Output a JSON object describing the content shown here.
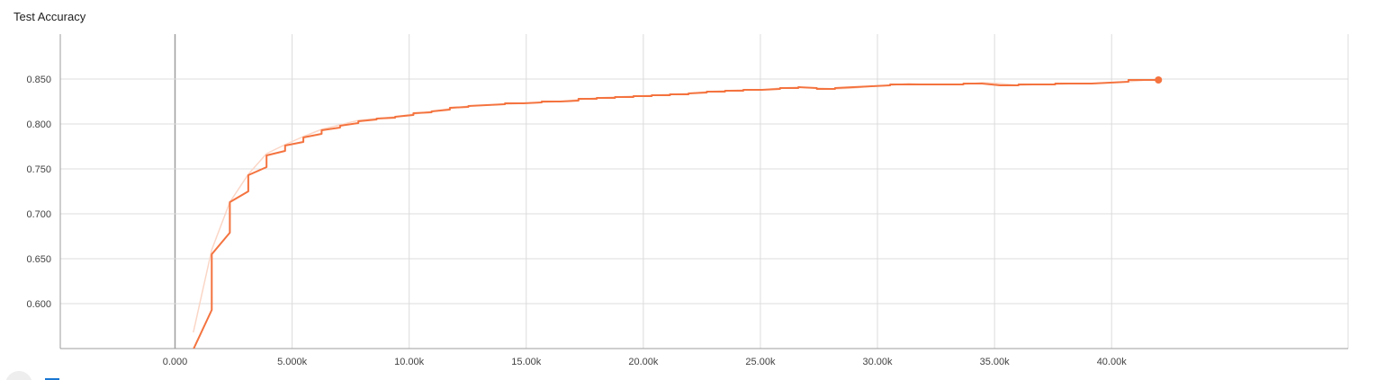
{
  "chart_title": "Test Accuracy",
  "chart_data": {
    "type": "line",
    "title": "Test Accuracy",
    "xlabel": "",
    "ylabel": "",
    "xlim": [
      -4900,
      50100
    ],
    "ylim": [
      0.55,
      0.9
    ],
    "grid": true,
    "x_ticks": [
      0,
      5000,
      10000,
      15000,
      20000,
      25000,
      30000,
      35000,
      40000
    ],
    "x_tick_labels": [
      "0.000",
      "5.000k",
      "10.00k",
      "15.00k",
      "20.00k",
      "25.00k",
      "30.00k",
      "35.00k",
      "40.00k"
    ],
    "y_ticks": [
      0.6,
      0.65,
      0.7,
      0.75,
      0.8,
      0.85
    ],
    "y_tick_labels": [
      "0.600",
      "0.650",
      "0.700",
      "0.750",
      "0.800",
      "0.850"
    ],
    "series": [
      {
        "role": "smoothed",
        "color": "#f4733f",
        "x": [
          780,
          1570,
          1570,
          2340,
          2340,
          3130,
          3130,
          3910,
          3910,
          4700,
          4700,
          5480,
          5480,
          6260,
          6260,
          7050,
          7050,
          7830,
          7830,
          8610,
          8610,
          9400,
          9400,
          10180,
          10180,
          10960,
          10960,
          11740,
          11740,
          12530,
          12530,
          13310,
          13310,
          14090,
          14090,
          14880,
          14880,
          15660,
          15660,
          16440,
          16440,
          17230,
          17230,
          18010,
          18010,
          18790,
          18790,
          19580,
          19580,
          20360,
          20360,
          21140,
          21140,
          21930,
          21930,
          22710,
          22710,
          23490,
          23490,
          24270,
          24270,
          25060,
          25060,
          25840,
          25840,
          26620,
          26620,
          27410,
          27410,
          28190,
          28190,
          28970,
          28970,
          29760,
          29760,
          30540,
          30540,
          31320,
          31320,
          32110,
          32110,
          32890,
          32890,
          33670,
          33670,
          34460,
          34460,
          35240,
          35240,
          36020,
          36020,
          36800,
          36800,
          37590,
          37590,
          38370,
          38370,
          39150,
          39150,
          39940,
          39940,
          40720,
          40720,
          41500,
          41500,
          42000
        ],
        "y": [
          0.549,
          0.593,
          0.655,
          0.679,
          0.713,
          0.725,
          0.743,
          0.752,
          0.765,
          0.77,
          0.776,
          0.78,
          0.785,
          0.789,
          0.793,
          0.796,
          0.798,
          0.801,
          0.803,
          0.805,
          0.806,
          0.807,
          0.808,
          0.81,
          0.812,
          0.813,
          0.814,
          0.816,
          0.818,
          0.819,
          0.82,
          0.821,
          0.821,
          0.822,
          0.823,
          0.823,
          0.823,
          0.824,
          0.825,
          0.825,
          0.825,
          0.826,
          0.828,
          0.828,
          0.829,
          0.829,
          0.83,
          0.83,
          0.831,
          0.831,
          0.832,
          0.832,
          0.833,
          0.833,
          0.834,
          0.835,
          0.836,
          0.836,
          0.837,
          0.837,
          0.838,
          0.838,
          0.838,
          0.839,
          0.84,
          0.84,
          0.841,
          0.84,
          0.839,
          0.839,
          0.84,
          0.841,
          0.841,
          0.842,
          0.842,
          0.843,
          0.844,
          0.844,
          0.844,
          0.844,
          0.844,
          0.844,
          0.844,
          0.844,
          0.845,
          0.845,
          0.845,
          0.843,
          0.843,
          0.843,
          0.844,
          0.844,
          0.844,
          0.844,
          0.845,
          0.845,
          0.845,
          0.845,
          0.845,
          0.846,
          0.846,
          0.847,
          0.849,
          0.849,
          0.849,
          0.849
        ]
      },
      {
        "role": "raw",
        "color": "#fbd6c6",
        "x": [
          780,
          1570,
          2340,
          3130,
          3910,
          4700,
          5480,
          6260,
          7050,
          7830,
          8610,
          9400,
          10180,
          10960,
          11740,
          12530,
          13310,
          14090,
          14880,
          15660,
          16440,
          17230,
          18010,
          18790,
          19580,
          20360,
          21140,
          21930,
          22710,
          23490,
          24270,
          25060,
          25840,
          26620,
          27410,
          28190,
          28970,
          29760,
          30540,
          31320,
          32110,
          32890,
          33670,
          34460,
          35240,
          36020,
          36800,
          37590,
          38370,
          39150,
          39940,
          40720,
          41500,
          42000
        ],
        "y": [
          0.568,
          0.66,
          0.713,
          0.744,
          0.767,
          0.777,
          0.786,
          0.794,
          0.799,
          0.804,
          0.806,
          0.808,
          0.811,
          0.814,
          0.817,
          0.82,
          0.821,
          0.822,
          0.823,
          0.824,
          0.825,
          0.827,
          0.829,
          0.83,
          0.831,
          0.832,
          0.833,
          0.834,
          0.836,
          0.837,
          0.838,
          0.838,
          0.84,
          0.841,
          0.84,
          0.839,
          0.84,
          0.842,
          0.843,
          0.845,
          0.844,
          0.844,
          0.844,
          0.846,
          0.845,
          0.843,
          0.844,
          0.844,
          0.845,
          0.845,
          0.846,
          0.847,
          0.849,
          0.849
        ]
      }
    ],
    "end_marker": {
      "x": 42000,
      "y": 0.849
    }
  }
}
